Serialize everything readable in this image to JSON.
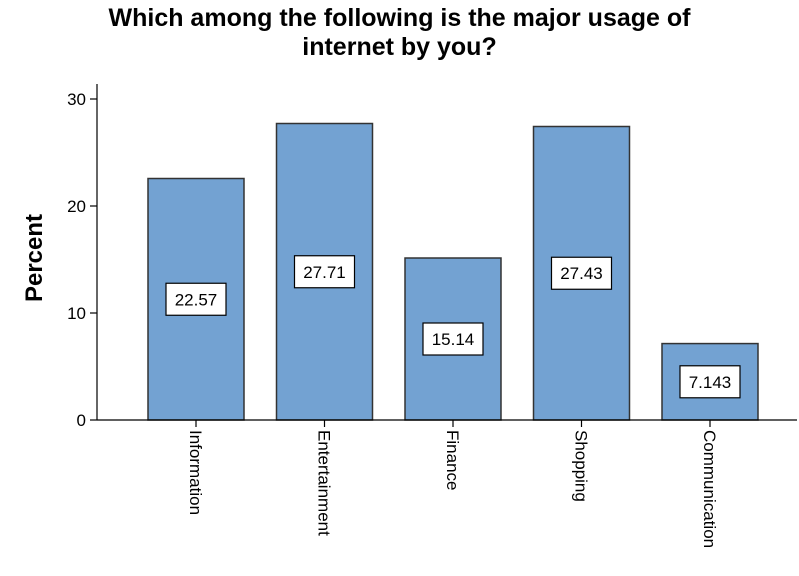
{
  "chart_data": {
    "type": "bar",
    "title_lines": [
      "Which among the following is the major usage of",
      "internet by you?"
    ],
    "ylabel": "Percent",
    "xlabel": "",
    "ylim": [
      0,
      30
    ],
    "yticks": [
      0,
      10,
      20,
      30
    ],
    "categories": [
      "Information",
      "Entertainment",
      "Finance",
      "Shopping",
      "Communication"
    ],
    "values": [
      22.57,
      27.71,
      15.14,
      27.43,
      7.143
    ],
    "value_labels": [
      "22.57",
      "27.71",
      "15.14",
      "27.43",
      "7.143"
    ],
    "bar_color": "#73a2d2",
    "bar_border_color": "#333333",
    "grid": false,
    "legend": "none"
  }
}
